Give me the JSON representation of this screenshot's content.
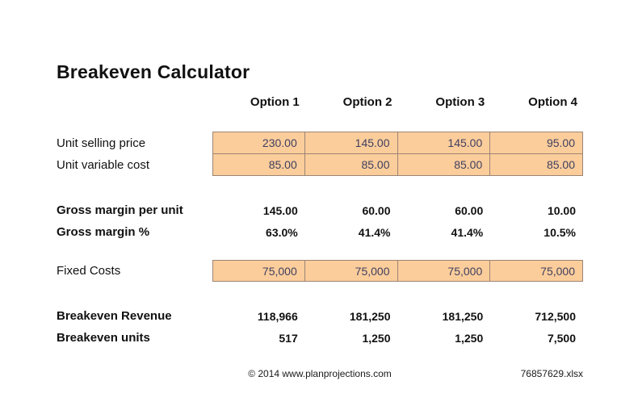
{
  "page": {
    "title": "Breakeven Calculator"
  },
  "columns": [
    "Option 1",
    "Option 2",
    "Option 3",
    "Option 4"
  ],
  "table": {
    "rows": [
      {
        "label": "Unit selling price",
        "style": "input",
        "values": [
          "230.00",
          "145.00",
          "145.00",
          "95.00"
        ]
      },
      {
        "label": "Unit variable cost",
        "style": "input",
        "values": [
          "85.00",
          "85.00",
          "85.00",
          "85.00"
        ]
      },
      {
        "label": "Gross margin per unit",
        "style": "bold",
        "values": [
          "145.00",
          "60.00",
          "60.00",
          "10.00"
        ]
      },
      {
        "label": "Gross margin %",
        "style": "bold",
        "values": [
          "63.0%",
          "41.4%",
          "41.4%",
          "10.5%"
        ]
      },
      {
        "label": "Fixed Costs",
        "style": "input",
        "values": [
          "75,000",
          "75,000",
          "75,000",
          "75,000"
        ]
      },
      {
        "label": "Breakeven Revenue",
        "style": "bold",
        "values": [
          "118,966",
          "181,250",
          "181,250",
          "712,500"
        ]
      },
      {
        "label": "Breakeven units",
        "style": "bold",
        "values": [
          "517",
          "1,250",
          "1,250",
          "7,500"
        ]
      }
    ]
  },
  "footer": {
    "copyright": "© 2014 www.planprojections.com",
    "filename": "76857629.xlsx"
  },
  "colors": {
    "input_cell_fill": "#FBCD9B",
    "input_cell_border": "#9B8474",
    "input_cell_text": "#3F3F5F",
    "text": "#111111"
  }
}
